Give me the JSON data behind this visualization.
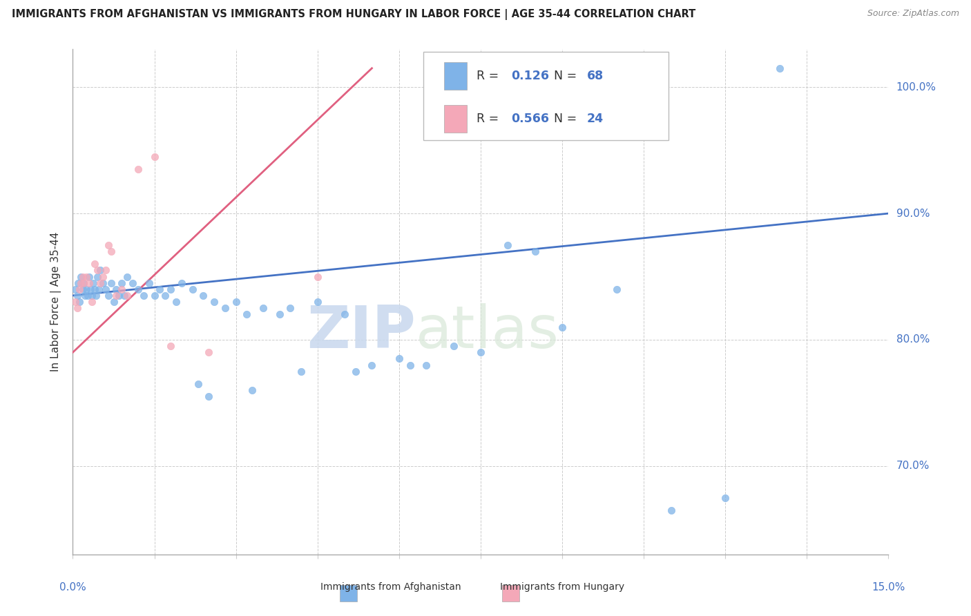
{
  "title": "IMMIGRANTS FROM AFGHANISTAN VS IMMIGRANTS FROM HUNGARY IN LABOR FORCE | AGE 35-44 CORRELATION CHART",
  "source": "Source: ZipAtlas.com",
  "ylabel": "In Labor Force | Age 35-44",
  "xlim": [
    0.0,
    15.0
  ],
  "ylim": [
    63.0,
    103.0
  ],
  "yticks": [
    70.0,
    80.0,
    90.0,
    100.0
  ],
  "afghanistan_color": "#7fb3e8",
  "hungary_color": "#f4a8b8",
  "afghanistan_line_color": "#4472c4",
  "hungary_line_color": "#e06080",
  "r_afghanistan": 0.126,
  "n_afghanistan": 68,
  "r_hungary": 0.566,
  "n_hungary": 24,
  "watermark_zip": "ZIP",
  "watermark_atlas": "atlas",
  "af_x": [
    0.05,
    0.08,
    0.1,
    0.12,
    0.15,
    0.18,
    0.2,
    0.22,
    0.25,
    0.28,
    0.3,
    0.32,
    0.35,
    0.38,
    0.4,
    0.42,
    0.45,
    0.48,
    0.5,
    0.55,
    0.6,
    0.65,
    0.7,
    0.75,
    0.8,
    0.85,
    0.9,
    0.95,
    1.0,
    1.1,
    1.2,
    1.3,
    1.4,
    1.5,
    1.6,
    1.7,
    1.8,
    1.9,
    2.0,
    2.2,
    2.4,
    2.6,
    2.8,
    3.0,
    3.2,
    3.5,
    3.8,
    4.0,
    4.5,
    5.0,
    5.5,
    6.0,
    6.5,
    7.0,
    7.5,
    8.0,
    9.0,
    10.0,
    11.0,
    12.0,
    13.0,
    2.3,
    2.5,
    3.3,
    4.2,
    5.2,
    6.2,
    8.5
  ],
  "af_y": [
    84.0,
    83.5,
    84.5,
    83.0,
    85.0,
    84.0,
    84.5,
    83.5,
    84.0,
    83.5,
    85.0,
    84.0,
    83.5,
    84.5,
    84.0,
    83.5,
    85.0,
    84.0,
    85.5,
    84.5,
    84.0,
    83.5,
    84.5,
    83.0,
    84.0,
    83.5,
    84.5,
    83.5,
    85.0,
    84.5,
    84.0,
    83.5,
    84.5,
    83.5,
    84.0,
    83.5,
    84.0,
    83.0,
    84.5,
    84.0,
    83.5,
    83.0,
    82.5,
    83.0,
    82.0,
    82.5,
    82.0,
    82.5,
    83.0,
    82.0,
    78.0,
    78.5,
    78.0,
    79.5,
    79.0,
    87.5,
    81.0,
    84.0,
    66.5,
    67.5,
    101.5,
    76.5,
    75.5,
    76.0,
    77.5,
    77.5,
    78.0,
    87.0
  ],
  "hu_x": [
    0.05,
    0.08,
    0.12,
    0.15,
    0.18,
    0.2,
    0.25,
    0.3,
    0.35,
    0.4,
    0.45,
    0.5,
    0.55,
    0.6,
    0.65,
    0.7,
    0.8,
    0.9,
    1.0,
    1.2,
    1.5,
    1.8,
    2.5,
    4.5
  ],
  "hu_y": [
    83.0,
    82.5,
    84.0,
    84.5,
    85.0,
    84.5,
    85.0,
    84.5,
    83.0,
    86.0,
    85.5,
    84.5,
    85.0,
    85.5,
    87.5,
    87.0,
    83.5,
    84.0,
    83.5,
    93.5,
    94.5,
    79.5,
    79.0,
    85.0
  ]
}
